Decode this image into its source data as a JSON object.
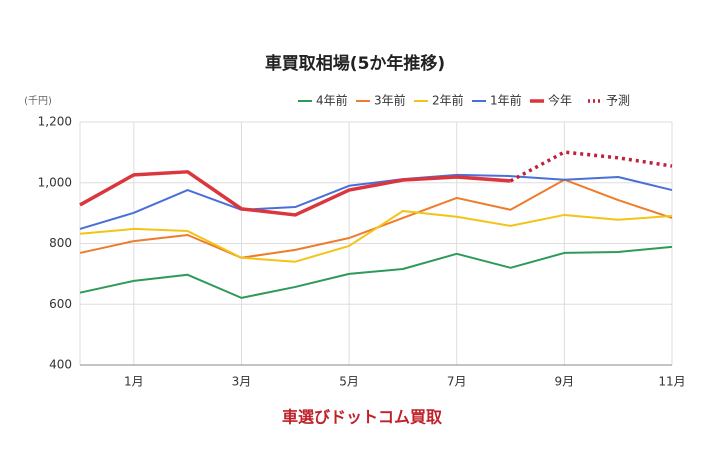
{
  "chart_data": {
    "type": "line",
    "title": "車買取相場(5か年推移)",
    "y_unit": "(千円)",
    "footer": "車選びドットコム買取",
    "categories": [
      null,
      "1月",
      null,
      "3月",
      null,
      "5月",
      null,
      "7月",
      null,
      "9月",
      null,
      "11月"
    ],
    "ylim": [
      400,
      1200
    ],
    "yticks": [
      400,
      600,
      800,
      {
        "value": 1000,
        "label": "1,000"
      },
      {
        "value": 1200,
        "label": "1,200"
      }
    ],
    "grid": true,
    "legend": "top",
    "series": [
      {
        "name": "4年前",
        "color": "#2e9a5a",
        "style": "solid",
        "values": [
          638,
          677,
          697,
          621,
          657,
          700,
          716,
          766,
          720,
          769,
          772,
          789
        ]
      },
      {
        "name": "3年前",
        "color": "#ef7b2c",
        "style": "solid",
        "values": [
          769,
          808,
          828,
          753,
          779,
          818,
          884,
          950,
          911,
          1010,
          943,
          884
        ]
      },
      {
        "name": "2年前",
        "color": "#f2c418",
        "style": "solid",
        "values": [
          832,
          848,
          841,
          753,
          740,
          792,
          907,
          888,
          858,
          894,
          878,
          891
        ]
      },
      {
        "name": "1年前",
        "color": "#4a6fd8",
        "style": "solid",
        "values": [
          848,
          901,
          976,
          911,
          920,
          990,
          1012,
          1026,
          1022,
          1010,
          1019,
          976
        ]
      },
      {
        "name": "今年",
        "color": "#d9363e",
        "style": "bold",
        "values": [
          927,
          1026,
          1036,
          914,
          894,
          976,
          1009,
          1019,
          1006,
          null,
          null,
          null
        ]
      },
      {
        "name": "予測",
        "color": "#c0203a",
        "style": "dotted",
        "values": [
          null,
          null,
          null,
          null,
          null,
          null,
          null,
          null,
          1006,
          1101,
          1082,
          1055
        ]
      }
    ]
  }
}
